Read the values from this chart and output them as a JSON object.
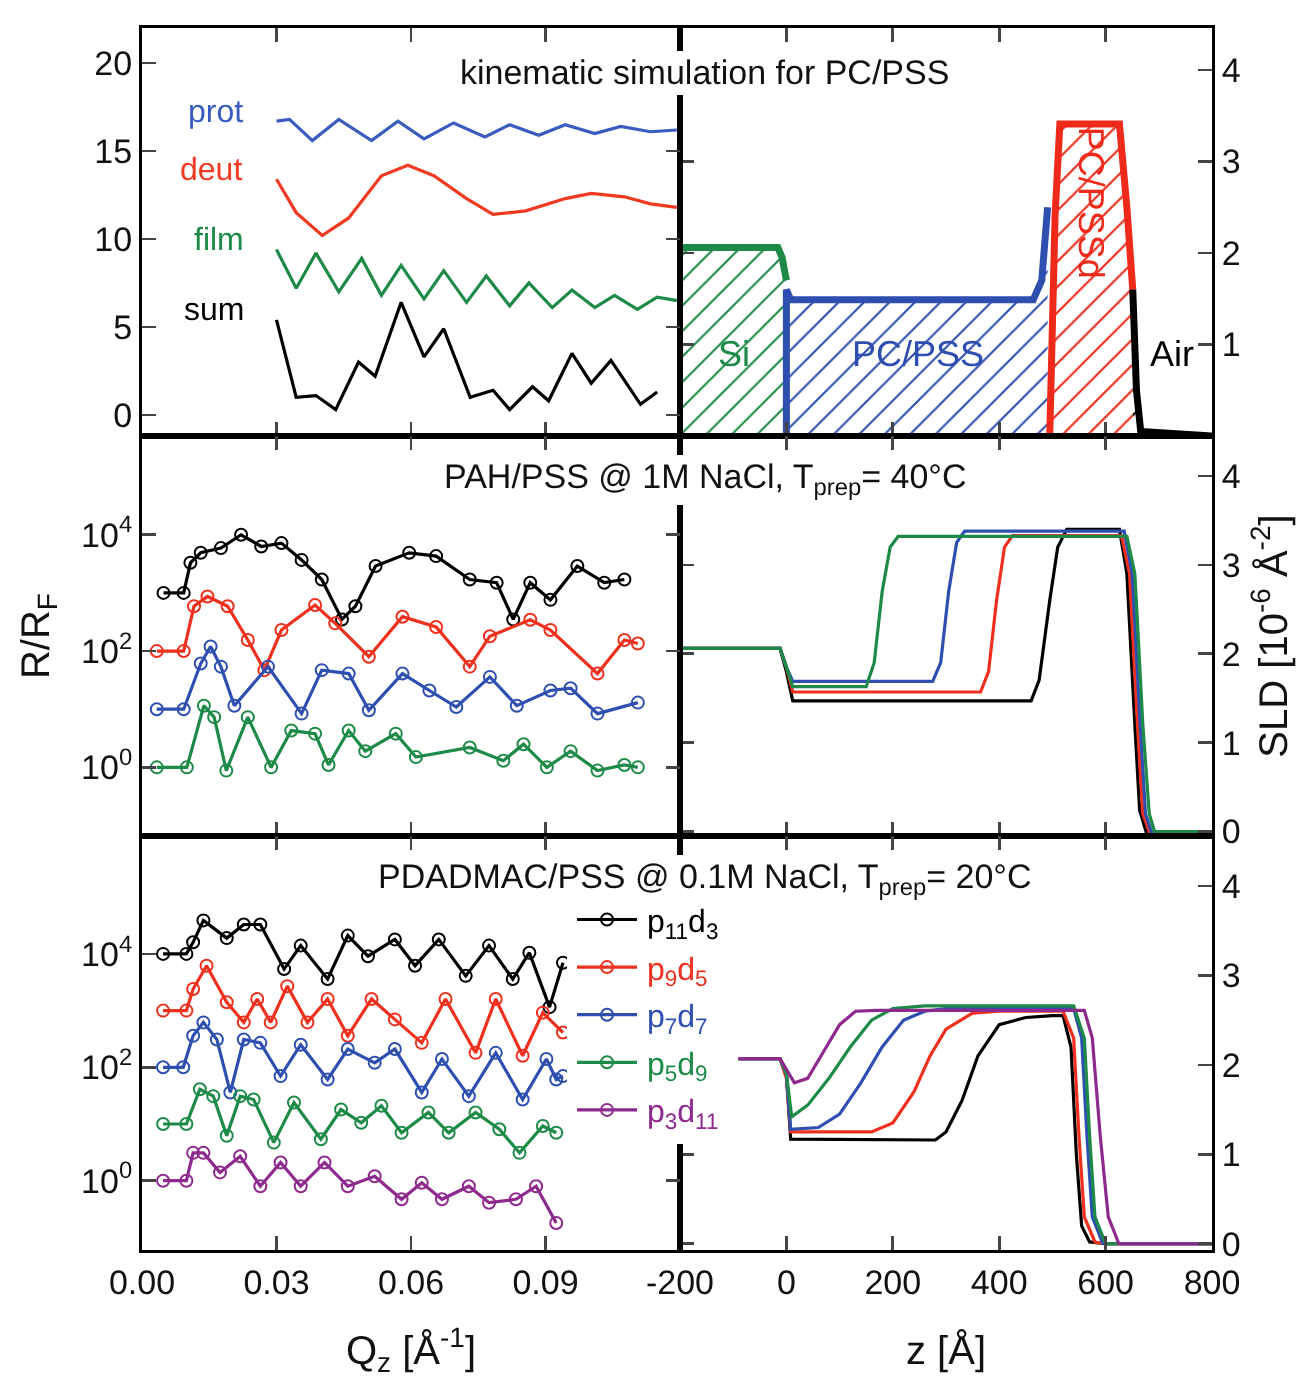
{
  "chart_data": [
    {
      "type": "line",
      "title": "kinematic simulation for PC/PSS",
      "xlim": [
        0,
        0.12
      ],
      "xticks": [
        0,
        0.03,
        0.06,
        0.09,
        0.12
      ],
      "ylim": [
        -1.2,
        22
      ],
      "yticks": [
        0,
        5,
        10,
        15,
        20
      ],
      "tick_labels": "y",
      "series": [
        {
          "name": "prot",
          "color": "#3a5cc0",
          "x": [
            0.03,
            0.0329,
            0.038,
            0.0439,
            0.0512,
            0.0571,
            0.0629,
            0.0695,
            0.0765,
            0.082,
            0.0885,
            0.0944,
            0.101,
            0.1068,
            0.1134,
            0.1193
          ],
          "values": [
            16.7,
            16.8,
            15.6,
            16.8,
            15.6,
            16.7,
            15.7,
            16.6,
            15.8,
            16.5,
            15.9,
            16.5,
            16.0,
            16.4,
            16.1,
            16.2
          ]
        },
        {
          "name": "deut",
          "color": "#f03a22",
          "x": [
            0.03,
            0.0344,
            0.0402,
            0.0461,
            0.0534,
            0.0593,
            0.0651,
            0.0724,
            0.0783,
            0.0856,
            0.0944,
            0.1002,
            0.1076,
            0.1134,
            0.1193
          ],
          "values": [
            13.4,
            11.5,
            10.2,
            11.2,
            13.6,
            14.2,
            13.6,
            12.3,
            11.4,
            11.6,
            12.3,
            12.6,
            12.4,
            12.0,
            11.8
          ]
        },
        {
          "name": "film",
          "color": "#1e8a48",
          "x": [
            0.03,
            0.0344,
            0.0388,
            0.0439,
            0.049,
            0.0534,
            0.0578,
            0.0629,
            0.0673,
            0.0724,
            0.0768,
            0.082,
            0.0863,
            0.0915,
            0.0959,
            0.101,
            0.1054,
            0.1105,
            0.1149,
            0.1193
          ],
          "values": [
            9.4,
            7.2,
            9.2,
            7.0,
            8.9,
            6.8,
            8.5,
            6.6,
            8.2,
            6.4,
            7.9,
            6.2,
            7.5,
            6.1,
            7.1,
            6.1,
            6.8,
            6.0,
            6.7,
            6.5
          ]
        },
        {
          "name": "sum",
          "color": "#000000",
          "x": [
            0.03,
            0.0344,
            0.0388,
            0.0432,
            0.0483,
            0.052,
            0.0578,
            0.0629,
            0.0673,
            0.0732,
            0.0783,
            0.082,
            0.0871,
            0.0907,
            0.0959,
            0.1002,
            0.1046,
            0.1112,
            0.1149
          ],
          "values": [
            5.4,
            1.0,
            1.1,
            0.3,
            3.0,
            2.2,
            6.4,
            3.3,
            4.9,
            1.0,
            1.4,
            0.3,
            1.6,
            0.8,
            3.5,
            1.8,
            3.1,
            0.6,
            1.3
          ]
        }
      ]
    },
    {
      "type": "area",
      "xlim": [
        -200,
        800
      ],
      "xticks": [
        -200,
        0,
        200,
        400,
        600,
        800
      ],
      "ylim": [
        0,
        4.46
      ],
      "yticks": [
        {
          "value": 0,
          "label": null
        },
        1,
        2,
        3,
        4
      ],
      "tick_labels": "y",
      "series": [
        {
          "name": "Si",
          "color": "#1e8a48",
          "x": [
            -200,
            -16,
            -8,
            0
          ],
          "values": [
            2.06,
            2.06,
            1.95,
            1.7
          ]
        },
        {
          "name": "PC/PSS",
          "color": "#2e4fb0",
          "x": [
            0,
            0,
            8,
            464,
            480,
            491
          ],
          "values": [
            0,
            1.6,
            1.49,
            1.49,
            1.7,
            2.5
          ]
        },
        {
          "name": "PC/PSSd",
          "color": "#f02a1a",
          "x": [
            495,
            505,
            514,
            626,
            640,
            651
          ],
          "values": [
            0,
            2.4,
            3.41,
            3.41,
            2.5,
            1.6
          ]
        },
        {
          "name": "Air",
          "color": "#000000",
          "x": [
            651,
            658,
            666,
            800
          ],
          "values": [
            1.6,
            0.5,
            0.05,
            0
          ]
        }
      ]
    },
    {
      "type": "line",
      "title": "PAH/PSS @ 1M NaCl, T$_{prep}$= 40°C",
      "ylabel": "R/R$_{F}$",
      "log": true,
      "marker": "circle",
      "xlim": [
        0,
        0.12
      ],
      "xticks": [
        0,
        0.03,
        0.06,
        0.09,
        0.12
      ],
      "ylim": [
        0.066,
        500000
      ],
      "yticks": [
        {
          "value": 1,
          "label": "10$^{0}$"
        },
        {
          "value": 100,
          "label": "10$^{2}$"
        },
        {
          "value": 10000,
          "label": "10$^{4}$"
        }
      ],
      "tick_labels": "y",
      "series": [
        {
          "color": "#000000",
          "x": [
            0.0048,
            0.0093,
            0.0108,
            0.0131,
            0.0176,
            0.0221,
            0.0266,
            0.0311,
            0.0356,
            0.0401,
            0.0446,
            0.0476,
            0.0521,
            0.0596,
            0.0656,
            0.0731,
            0.0791,
            0.0828,
            0.0866,
            0.0911,
            0.0971,
            0.1031,
            0.1076
          ],
          "values": [
            1000,
            1000,
            3300,
            4900,
            5900,
            10000,
            6300,
            7200,
            3700,
            1700,
            350,
            590,
            2900,
            4900,
            4300,
            1700,
            1500,
            350,
            1500,
            760,
            2900,
            1500,
            1700
          ]
        },
        {
          "color": "#f0301e",
          "x": [
            0.0033,
            0.0093,
            0.0116,
            0.0146,
            0.0191,
            0.0236,
            0.0273,
            0.0311,
            0.0386,
            0.0431,
            0.0506,
            0.0581,
            0.0656,
            0.0731,
            0.0776,
            0.0866,
            0.0911,
            0.1016,
            0.1076,
            0.1106
          ],
          "values": [
            100,
            100,
            590,
            870,
            590,
            155,
            47,
            230,
            620,
            300,
            80,
            390,
            260,
            54,
            180,
            345,
            230,
            41,
            155,
            135
          ]
        },
        {
          "color": "#2e4fb0",
          "x": [
            0.0033,
            0.0093,
            0.0131,
            0.0153,
            0.0176,
            0.0206,
            0.0281,
            0.0356,
            0.0401,
            0.0461,
            0.0506,
            0.0581,
            0.0641,
            0.0701,
            0.0776,
            0.0836,
            0.0911,
            0.0956,
            0.1016,
            0.1106
          ],
          "values": [
            10,
            10,
            61,
            120,
            54,
            11.5,
            54,
            8.4,
            47,
            41,
            9.6,
            41,
            21,
            10.9,
            36,
            11.5,
            21,
            23,
            8.4,
            13
          ]
        },
        {
          "color": "#1e8a48",
          "x": [
            0.0033,
            0.01,
            0.0138,
            0.0161,
            0.0188,
            0.0236,
            0.0288,
            0.0333,
            0.0386,
            0.0416,
            0.0461,
            0.0498,
            0.0566,
            0.0611,
            0.0731,
            0.0806,
            0.0851,
            0.0903,
            0.0956,
            0.1016,
            0.1076,
            0.1106
          ],
          "values": [
            1,
            1,
            11.5,
            7.3,
            0.88,
            7.3,
            1,
            4.3,
            3.8,
            1.1,
            4.3,
            1.9,
            3.8,
            1.5,
            2.2,
            1.3,
            2.5,
            1,
            1.9,
            0.88,
            1.1,
            1
          ]
        }
      ]
    },
    {
      "type": "line",
      "ylabel": "SLD [10$^{-6}$ Å$^{-2}$]",
      "xlim": [
        -200,
        800
      ],
      "xticks": [
        -200,
        0,
        200,
        400,
        600,
        800
      ],
      "ylim": [
        -0.05,
        4.45
      ],
      "yticks": [
        0,
        1,
        2,
        3,
        4
      ],
      "tick_labels": "y",
      "series": [
        {
          "color": "#000000",
          "x": [
            -200,
            -12,
            0,
            12,
            460,
            475,
            495,
            510,
            527,
            626,
            640,
            655,
            664,
            676,
            800
          ],
          "values": [
            2.06,
            2.06,
            1.8,
            1.47,
            1.47,
            1.7,
            2.6,
            3.2,
            3.4,
            3.4,
            2.9,
            1.2,
            0.24,
            0,
            0
          ]
        },
        {
          "color": "#f0301e",
          "x": [
            -200,
            -12,
            0,
            12,
            365,
            380,
            395,
            410,
            425,
            630,
            645,
            660,
            670,
            682,
            800
          ],
          "values": [
            2.06,
            2.06,
            1.85,
            1.57,
            1.57,
            1.8,
            2.6,
            3.2,
            3.33,
            3.33,
            2.9,
            1.2,
            0.2,
            0,
            0
          ]
        },
        {
          "color": "#2e4fb0",
          "x": [
            -200,
            -12,
            0,
            12,
            275,
            290,
            305,
            320,
            335,
            635,
            650,
            665,
            675,
            686,
            800
          ],
          "values": [
            2.06,
            2.06,
            1.85,
            1.69,
            1.69,
            1.9,
            2.7,
            3.25,
            3.38,
            3.38,
            2.9,
            1.2,
            0.2,
            0,
            0
          ]
        },
        {
          "color": "#1e8a48",
          "x": [
            -200,
            -12,
            0,
            12,
            150,
            165,
            180,
            195,
            210,
            640,
            655,
            670,
            682,
            692,
            800
          ],
          "values": [
            2.06,
            2.06,
            1.85,
            1.63,
            1.63,
            1.9,
            2.7,
            3.2,
            3.32,
            3.32,
            2.9,
            1.2,
            0.2,
            0,
            0
          ]
        }
      ]
    },
    {
      "type": "line",
      "title": "PDADMAC/PSS @ 0.1M NaCl, T$_{prep}$= 20°C",
      "xlabel": "Q$_{z}$ [Å$^{-1}$]",
      "log": true,
      "marker": "circle",
      "legend": "top right",
      "xlim": [
        0,
        0.12
      ],
      "xticks": [
        {
          "value": 0,
          "label": "0.00"
        },
        {
          "value": 0.03,
          "label": "0.03"
        },
        {
          "value": 0.06,
          "label": "0.06"
        },
        {
          "value": 0.09,
          "label": "0.09"
        }
      ],
      "ylim": [
        0.06,
        1200000
      ],
      "yticks": [
        {
          "value": 1,
          "label": "10$^{0}$"
        },
        {
          "value": 100,
          "label": "10$^{2}$"
        },
        {
          "value": 10000,
          "label": "10$^{4}$"
        }
      ],
      "series": [
        {
          "name": "p$_{11}$d$_{3}$",
          "color": "#000000",
          "x": [
            0.0047,
            0.0099,
            0.0114,
            0.0137,
            0.0189,
            0.0227,
            0.0264,
            0.0317,
            0.0354,
            0.0414,
            0.0459,
            0.0504,
            0.0564,
            0.0609,
            0.0662,
            0.0722,
            0.0774,
            0.0827,
            0.0864,
            0.0909,
            0.0939
          ],
          "values": [
            10000,
            10000,
            16000,
            39000,
            19000,
            33000,
            33000,
            5400,
            14000,
            3600,
            21000,
            9100,
            18000,
            6200,
            18000,
            4100,
            14000,
            3600,
            10500,
            1150,
            7000
          ]
        },
        {
          "name": "p$_{9}$d$_{5}$",
          "color": "#f0301e",
          "x": [
            0.0047,
            0.0099,
            0.0114,
            0.0144,
            0.0189,
            0.0227,
            0.0257,
            0.0287,
            0.0324,
            0.0369,
            0.0414,
            0.0459,
            0.0512,
            0.0564,
            0.0624,
            0.0677,
            0.0744,
            0.0789,
            0.0849,
            0.0894,
            0.0939
          ],
          "values": [
            1000,
            1000,
            2400,
            6200,
            1400,
            620,
            1600,
            620,
            2700,
            620,
            1600,
            360,
            1600,
            700,
            270,
            1600,
            180,
            1600,
            160,
            920,
            410
          ]
        },
        {
          "name": "p$_{7}$d$_{7}$",
          "color": "#2e4fb0",
          "x": [
            0.0047,
            0.0092,
            0.0114,
            0.0137,
            0.0167,
            0.0197,
            0.0227,
            0.0264,
            0.0309,
            0.0354,
            0.0414,
            0.0459,
            0.0519,
            0.0564,
            0.0624,
            0.0669,
            0.0729,
            0.0789,
            0.0849,
            0.0902,
            0.0924,
            0.0939
          ],
          "values": [
            100,
            100,
            360,
            620,
            310,
            36,
            310,
            270,
            70,
            250,
            61,
            210,
            120,
            210,
            36,
            140,
            31,
            180,
            27,
            140,
            61,
            70
          ]
        },
        {
          "name": "p$_{5}$d$_{9}$",
          "color": "#1e8a48",
          "x": [
            0.0047,
            0.0099,
            0.0129,
            0.0159,
            0.0189,
            0.0219,
            0.0249,
            0.0294,
            0.0339,
            0.0399,
            0.0444,
            0.0489,
            0.0534,
            0.0579,
            0.0639,
            0.0684,
            0.0744,
            0.0797,
            0.0842,
            0.0894,
            0.0924
          ],
          "values": [
            10,
            10,
            41,
            31,
            6.2,
            31,
            27,
            4.7,
            24,
            5.4,
            18,
            10.5,
            21,
            7,
            16,
            7,
            16,
            8.1,
            3.1,
            9.2,
            7
          ]
        },
        {
          "name": "p$_{3}$d$_{11}$",
          "color": "#8e2a8e",
          "x": [
            0.0047,
            0.0099,
            0.0114,
            0.0137,
            0.0174,
            0.0219,
            0.0264,
            0.0309,
            0.0354,
            0.0407,
            0.0459,
            0.0519,
            0.0579,
            0.0624,
            0.0669,
            0.0729,
            0.0774,
            0.0834,
            0.0879,
            0.0924
          ],
          "values": [
            1,
            1,
            3.1,
            3.1,
            1.4,
            2.7,
            0.8,
            2.1,
            0.8,
            2.1,
            0.8,
            1.2,
            0.47,
            0.92,
            0.47,
            0.8,
            0.41,
            0.47,
            0.8,
            0.18
          ]
        }
      ]
    },
    {
      "type": "line",
      "xlabel": "z [Å]",
      "ylim": [
        -0.07,
        4.56
      ],
      "yticks": [
        0,
        1,
        2,
        3,
        4
      ],
      "xlim": [
        -200,
        800
      ],
      "xticks": [
        -200,
        0,
        200,
        400,
        600,
        800
      ],
      "series": [
        {
          "color": "#000000",
          "x": [
            -90,
            -12,
            0,
            8,
            280,
            300,
            330,
            360,
            400,
            450,
            500,
            520,
            535,
            545,
            555,
            570,
            600,
            800
          ],
          "values": [
            2.07,
            2.07,
            1.9,
            1.17,
            1.16,
            1.25,
            1.6,
            2.1,
            2.45,
            2.53,
            2.55,
            2.55,
            2.2,
            1.0,
            0.2,
            0.02,
            0,
            0
          ]
        },
        {
          "color": "#f0301e",
          "x": [
            -90,
            -12,
            0,
            8,
            160,
            200,
            240,
            270,
            300,
            350,
            400,
            520,
            540,
            550,
            560,
            580,
            600,
            800
          ],
          "values": [
            2.07,
            2.07,
            1.85,
            1.25,
            1.25,
            1.35,
            1.7,
            2.1,
            2.4,
            2.58,
            2.6,
            2.6,
            2.3,
            1.2,
            0.3,
            0.02,
            0,
            0
          ]
        },
        {
          "color": "#2e4fb0",
          "x": [
            -90,
            -12,
            0,
            8,
            60,
            100,
            140,
            180,
            220,
            260,
            300,
            540,
            555,
            565,
            575,
            595,
            800
          ],
          "values": [
            2.07,
            2.07,
            1.9,
            1.28,
            1.3,
            1.45,
            1.8,
            2.2,
            2.5,
            2.6,
            2.63,
            2.63,
            2.3,
            1.2,
            0.3,
            0,
            0
          ]
        },
        {
          "color": "#1e8a48",
          "x": [
            -90,
            -12,
            0,
            10,
            40,
            80,
            120,
            160,
            200,
            260,
            540,
            560,
            570,
            580,
            600,
            800
          ],
          "values": [
            2.07,
            2.07,
            1.9,
            1.42,
            1.55,
            1.85,
            2.2,
            2.5,
            2.63,
            2.66,
            2.66,
            2.3,
            1.2,
            0.3,
            0,
            0
          ]
        },
        {
          "color": "#8e2a8e",
          "x": [
            -90,
            -12,
            0,
            15,
            40,
            70,
            100,
            130,
            170,
            560,
            575,
            590,
            605,
            625,
            800
          ],
          "values": [
            2.07,
            2.07,
            1.95,
            1.8,
            1.85,
            2.15,
            2.45,
            2.6,
            2.61,
            2.61,
            2.3,
            1.2,
            0.3,
            0,
            0
          ]
        }
      ]
    }
  ]
}
